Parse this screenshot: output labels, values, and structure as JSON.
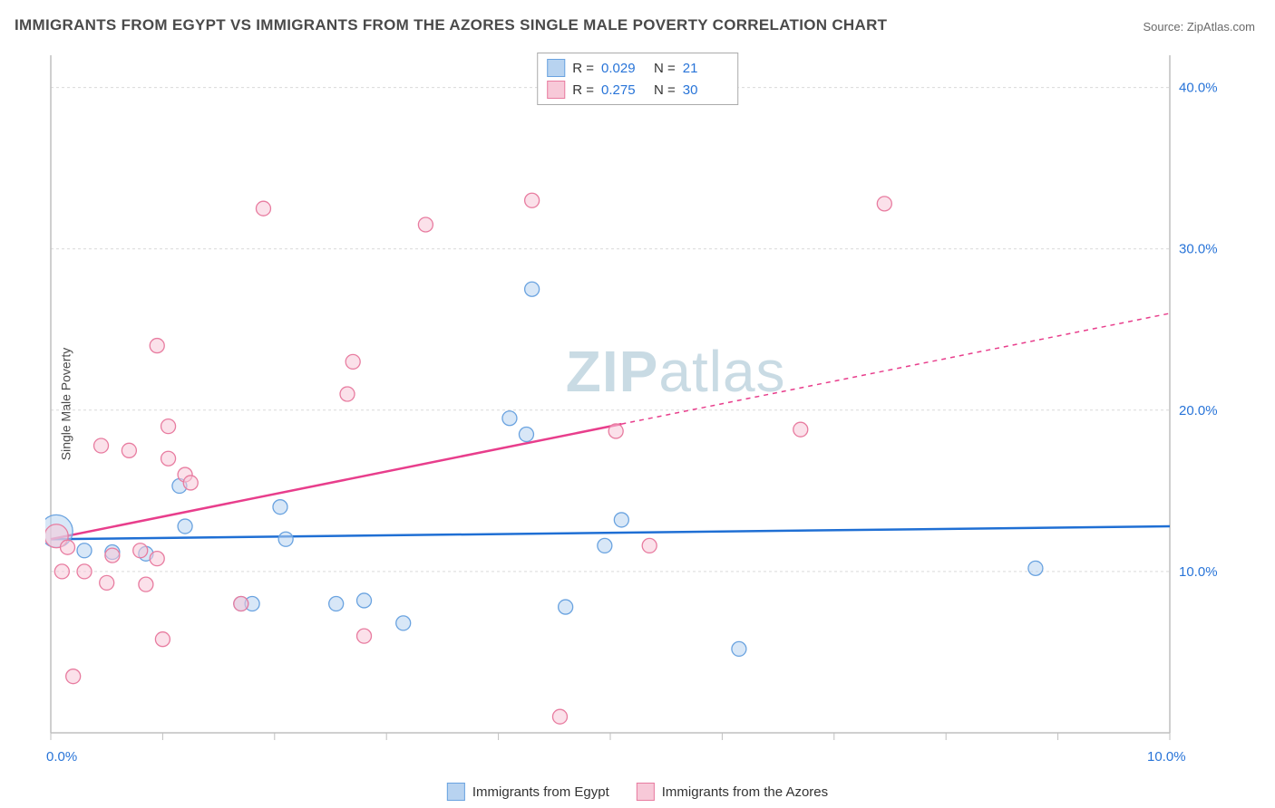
{
  "title": "IMMIGRANTS FROM EGYPT VS IMMIGRANTS FROM THE AZORES SINGLE MALE POVERTY CORRELATION CHART",
  "source": "Source: ZipAtlas.com",
  "ylabel": "Single Male Poverty",
  "watermark_a": "ZIP",
  "watermark_b": "atlas",
  "chart": {
    "type": "scatter",
    "xlim": [
      0,
      10
    ],
    "ylim": [
      0,
      42
    ],
    "xtick_labels": [
      "0.0%",
      "10.0%"
    ],
    "ytick_values": [
      10,
      20,
      30,
      40
    ],
    "ytick_labels": [
      "10.0%",
      "20.0%",
      "30.0%",
      "40.0%"
    ],
    "grid_color": "#d9d9d9",
    "axis_color": "#bfbfbf",
    "background_color": "#ffffff",
    "series": [
      {
        "name": "Immigrants from Egypt",
        "color_stroke": "#6aa3e0",
        "color_fill": "#b8d3f0",
        "trend_color": "#1f6fd4",
        "trend_dash_after_x": 10,
        "R": "0.029",
        "N": "21",
        "points": [
          {
            "x": 0.05,
            "y": 12.5,
            "r": 18
          },
          {
            "x": 0.3,
            "y": 11.3,
            "r": 8
          },
          {
            "x": 0.55,
            "y": 11.2,
            "r": 8
          },
          {
            "x": 0.85,
            "y": 11.1,
            "r": 8
          },
          {
            "x": 1.15,
            "y": 15.3,
            "r": 8
          },
          {
            "x": 1.2,
            "y": 12.8,
            "r": 8
          },
          {
            "x": 1.7,
            "y": 8.0,
            "r": 8
          },
          {
            "x": 1.8,
            "y": 8.0,
            "r": 8
          },
          {
            "x": 2.05,
            "y": 14.0,
            "r": 8
          },
          {
            "x": 2.1,
            "y": 12.0,
            "r": 8
          },
          {
            "x": 2.55,
            "y": 8.0,
            "r": 8
          },
          {
            "x": 2.8,
            "y": 8.2,
            "r": 8
          },
          {
            "x": 3.15,
            "y": 6.8,
            "r": 8
          },
          {
            "x": 4.1,
            "y": 19.5,
            "r": 8
          },
          {
            "x": 4.25,
            "y": 18.5,
            "r": 8
          },
          {
            "x": 4.3,
            "y": 27.5,
            "r": 8
          },
          {
            "x": 4.6,
            "y": 7.8,
            "r": 8
          },
          {
            "x": 4.95,
            "y": 11.6,
            "r": 8
          },
          {
            "x": 5.1,
            "y": 13.2,
            "r": 8
          },
          {
            "x": 6.15,
            "y": 5.2,
            "r": 8
          },
          {
            "x": 8.8,
            "y": 10.2,
            "r": 8
          }
        ],
        "trend": {
          "y_at_x0": 12.0,
          "y_at_xmax": 12.8
        }
      },
      {
        "name": "Immigrants from the Azores",
        "color_stroke": "#e87ca0",
        "color_fill": "#f7c9d8",
        "trend_color": "#e83e8c",
        "trend_dash_after_x": 5.1,
        "R": "0.275",
        "N": "30",
        "points": [
          {
            "x": 0.05,
            "y": 12.2,
            "r": 13
          },
          {
            "x": 0.1,
            "y": 10.0,
            "r": 8
          },
          {
            "x": 0.15,
            "y": 11.5,
            "r": 8
          },
          {
            "x": 0.2,
            "y": 3.5,
            "r": 8
          },
          {
            "x": 0.3,
            "y": 10.0,
            "r": 8
          },
          {
            "x": 0.45,
            "y": 17.8,
            "r": 8
          },
          {
            "x": 0.5,
            "y": 9.3,
            "r": 8
          },
          {
            "x": 0.55,
            "y": 11.0,
            "r": 8
          },
          {
            "x": 0.7,
            "y": 17.5,
            "r": 8
          },
          {
            "x": 0.8,
            "y": 11.3,
            "r": 8
          },
          {
            "x": 0.85,
            "y": 9.2,
            "r": 8
          },
          {
            "x": 0.95,
            "y": 24.0,
            "r": 8
          },
          {
            "x": 0.95,
            "y": 10.8,
            "r": 8
          },
          {
            "x": 1.0,
            "y": 5.8,
            "r": 8
          },
          {
            "x": 1.05,
            "y": 17.0,
            "r": 8
          },
          {
            "x": 1.05,
            "y": 19.0,
            "r": 8
          },
          {
            "x": 1.2,
            "y": 16.0,
            "r": 8
          },
          {
            "x": 1.25,
            "y": 15.5,
            "r": 8
          },
          {
            "x": 1.7,
            "y": 8.0,
            "r": 8
          },
          {
            "x": 1.9,
            "y": 32.5,
            "r": 8
          },
          {
            "x": 2.65,
            "y": 21.0,
            "r": 8
          },
          {
            "x": 2.7,
            "y": 23.0,
            "r": 8
          },
          {
            "x": 2.8,
            "y": 6.0,
            "r": 8
          },
          {
            "x": 3.35,
            "y": 31.5,
            "r": 8
          },
          {
            "x": 4.3,
            "y": 33.0,
            "r": 8
          },
          {
            "x": 4.55,
            "y": 1.0,
            "r": 8
          },
          {
            "x": 5.05,
            "y": 18.7,
            "r": 8
          },
          {
            "x": 5.35,
            "y": 11.6,
            "r": 8
          },
          {
            "x": 6.7,
            "y": 18.8,
            "r": 8
          },
          {
            "x": 7.45,
            "y": 32.8,
            "r": 8
          }
        ],
        "trend": {
          "y_at_x0": 12.0,
          "y_at_xmax": 26.0
        }
      }
    ]
  }
}
